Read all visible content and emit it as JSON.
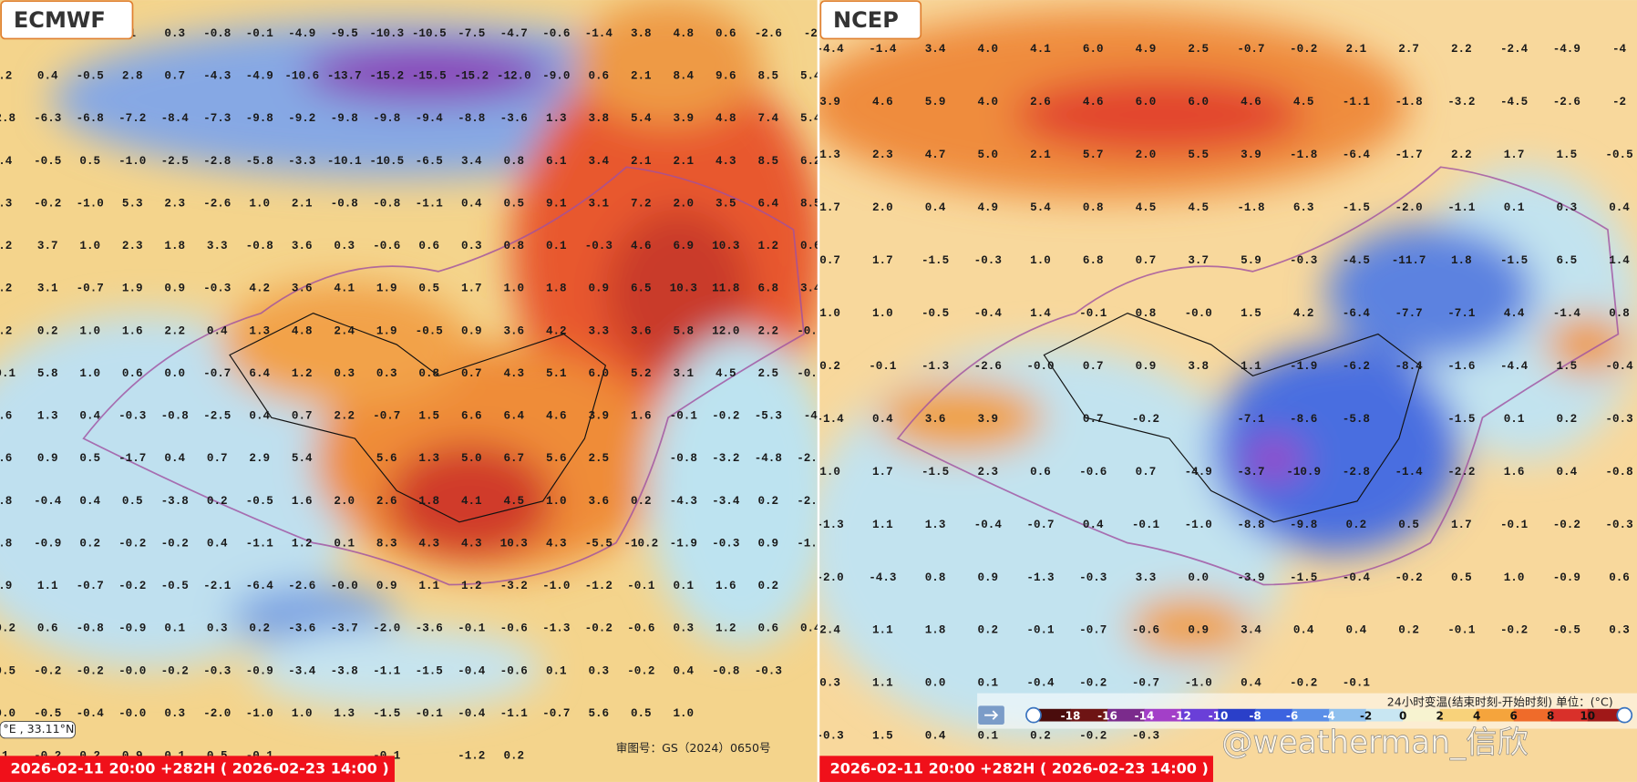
{
  "panels": [
    {
      "title": "ECMWF",
      "footer": "2026-02-11 20:00 +282H ( 2026-02-23 14:00 )",
      "map_number": "审图号：GS（2024）0650号",
      "coordinate": "°E , 33.11°N",
      "grid": [
        [
          null,
          null,
          null,
          "1",
          "0.3",
          "-0.8",
          "-0.1",
          "-4.9",
          "-9.5",
          "-10.3",
          "-10.5",
          "-7.5",
          "-4.7",
          "-0.6",
          "-1.4",
          "3.8",
          "4.8",
          "0.6",
          "-2.6",
          "-2"
        ],
        [
          ".2",
          "0.4",
          "-0.5",
          "2.8",
          "0.7",
          "-4.3",
          "-4.9",
          "-10.6",
          "-13.7",
          "-15.2",
          "-15.5",
          "-15.2",
          "-12.0",
          "-9.0",
          "0.6",
          "2.1",
          "8.4",
          "9.6",
          "8.5",
          "5.4"
        ],
        [
          "2.8",
          "-6.3",
          "-6.8",
          "-7.2",
          "-8.4",
          "-7.3",
          "-9.8",
          "-9.2",
          "-9.8",
          "-9.8",
          "-9.4",
          "-8.8",
          "-3.6",
          "1.3",
          "3.8",
          "5.4",
          "3.9",
          "4.8",
          "7.4",
          "5.4"
        ],
        [
          ".4",
          "-0.5",
          "0.5",
          "-1.0",
          "-2.5",
          "-2.8",
          "-5.8",
          "-3.3",
          "-10.1",
          "-10.5",
          "-6.5",
          "3.4",
          "0.8",
          "6.1",
          "3.4",
          "2.1",
          "2.1",
          "4.3",
          "8.5",
          "6.2"
        ],
        [
          ".3",
          "-0.2",
          "-1.0",
          "5.3",
          "2.3",
          "-2.6",
          "1.0",
          "2.1",
          "-0.8",
          "-0.8",
          "-1.1",
          "0.4",
          "0.5",
          "9.1",
          "3.1",
          "7.2",
          "2.0",
          "3.5",
          "6.4",
          "8.5"
        ],
        [
          ".2",
          "3.7",
          "1.0",
          "2.3",
          "1.8",
          "3.3",
          "-0.8",
          "3.6",
          "0.3",
          "-0.6",
          "0.6",
          "0.3",
          "0.8",
          "0.1",
          "-0.3",
          "4.6",
          "6.9",
          "10.3",
          "1.2",
          "0.6"
        ],
        [
          ".2",
          "3.1",
          "-0.7",
          "1.9",
          "0.9",
          "-0.3",
          "4.2",
          "3.6",
          "4.1",
          "1.9",
          "0.5",
          "1.7",
          "1.0",
          "1.8",
          "0.9",
          "6.5",
          "10.3",
          "11.8",
          "6.8",
          "3.4"
        ],
        [
          ".2",
          "0.2",
          "1.0",
          "1.6",
          "2.2",
          "0.4",
          "1.3",
          "4.8",
          "2.4",
          "1.9",
          "-0.5",
          "0.9",
          "3.6",
          "4.2",
          "3.3",
          "3.6",
          "5.8",
          "12.0",
          "2.2",
          "-0.7"
        ],
        [
          "0.1",
          "5.8",
          "1.0",
          "0.6",
          "0.0",
          "-0.7",
          "6.4",
          "1.2",
          "0.3",
          "0.3",
          "0.8",
          "0.7",
          "4.3",
          "5.1",
          "6.0",
          "5.2",
          "3.1",
          "4.5",
          "2.5",
          "-0.9"
        ],
        [
          ".6",
          "1.3",
          "0.4",
          "-0.3",
          "-0.8",
          "-2.5",
          "0.4",
          "0.7",
          "2.2",
          "-0.7",
          "1.5",
          "6.6",
          "6.4",
          "4.6",
          "3.9",
          "1.6",
          "-0.1",
          "-0.2",
          "-5.3",
          "-4"
        ],
        [
          ".6",
          "0.9",
          "0.5",
          "-1.7",
          "0.4",
          "0.7",
          "2.9",
          "5.4",
          null,
          "5.6",
          "1.3",
          "5.0",
          "6.7",
          "5.6",
          "2.5",
          null,
          "-0.8",
          "-3.2",
          "-4.8",
          "-2.1"
        ],
        [
          ".8",
          "-0.4",
          "0.4",
          "0.5",
          "-3.8",
          "0.2",
          "-0.5",
          "1.6",
          "2.0",
          "2.6",
          "1.8",
          "4.1",
          "4.5",
          "1.0",
          "3.6",
          "0.2",
          "-4.3",
          "-3.4",
          "0.2",
          "-2.6"
        ],
        [
          ".8",
          "-0.9",
          "0.2",
          "-0.2",
          "-0.2",
          "0.4",
          "-1.1",
          "1.2",
          "0.1",
          "8.3",
          "4.3",
          "4.3",
          "10.3",
          "4.3",
          "-5.5",
          "-10.2",
          "-1.9",
          "-0.3",
          "0.9",
          "-1.3"
        ],
        [
          ".9",
          "1.1",
          "-0.7",
          "-0.2",
          "-0.5",
          "-2.1",
          "-6.4",
          "-2.6",
          "-0.0",
          "0.9",
          "1.1",
          "1.2",
          "-3.2",
          "-1.0",
          "-1.2",
          "-0.1",
          "0.1",
          "1.6",
          "0.2",
          null
        ],
        [
          "0.2",
          "0.6",
          "-0.8",
          "-0.9",
          "0.1",
          "0.3",
          "0.2",
          "-3.6",
          "-3.7",
          "-2.0",
          "-3.6",
          "-0.1",
          "-0.6",
          "-1.3",
          "-0.2",
          "-0.6",
          "0.3",
          "1.2",
          "0.6",
          "0.4"
        ],
        [
          "0.5",
          "-0.2",
          "-0.2",
          "-0.0",
          "-0.2",
          "-0.3",
          "-0.9",
          "-3.4",
          "-3.8",
          "-1.1",
          "-1.5",
          "-0.4",
          "-0.6",
          "0.1",
          "0.3",
          "-0.2",
          "0.4",
          "-0.8",
          "-0.3",
          null
        ],
        [
          "0.0",
          "-0.5",
          "-0.4",
          "-0.0",
          "0.3",
          "-2.0",
          "-1.0",
          "1.0",
          "1.3",
          "-1.5",
          "-0.1",
          "-0.4",
          "-1.1",
          "-0.7",
          "5.6",
          "0.5",
          "1.0",
          null,
          null,
          null
        ],
        [
          "1",
          "-0.2",
          "0.2",
          "0.9",
          "0.1",
          "0.5",
          "-0.1",
          null,
          null,
          "-0.1",
          null,
          "-1.2",
          "0.2",
          null,
          null,
          null,
          null,
          null,
          null,
          null
        ]
      ]
    },
    {
      "title": "NCEP",
      "footer": "2026-02-11 20:00 +282H ( 2026-02-23 14:00 )",
      "grid": [
        [
          "-4.4",
          "-1.4",
          "3.4",
          "4.0",
          "4.1",
          "6.0",
          "4.9",
          "2.5",
          "-0.7",
          "-0.2",
          "2.1",
          "2.7",
          "2.2",
          "-2.4",
          "-4.9",
          "-4"
        ],
        [
          "3.9",
          "4.6",
          "5.9",
          "4.0",
          "2.6",
          "4.6",
          "6.0",
          "6.0",
          "4.6",
          "4.5",
          "-1.1",
          "-1.8",
          "-3.2",
          "-4.5",
          "-2.6",
          "-2"
        ],
        [
          "1.3",
          "2.3",
          "4.7",
          "5.0",
          "2.1",
          "5.7",
          "2.0",
          "5.5",
          "3.9",
          "-1.8",
          "-6.4",
          "-1.7",
          "2.2",
          "1.7",
          "1.5",
          "-0.5"
        ],
        [
          "1.7",
          "2.0",
          "0.4",
          "4.9",
          "5.4",
          "0.8",
          "4.5",
          "4.5",
          "-1.8",
          "6.3",
          "-1.5",
          "-2.0",
          "-1.1",
          "0.1",
          "0.3",
          "0.4"
        ],
        [
          "0.7",
          "1.7",
          "-1.5",
          "-0.3",
          "1.0",
          "6.8",
          "0.7",
          "3.7",
          "5.9",
          "-0.3",
          "-4.5",
          "-11.7",
          "1.8",
          "-1.5",
          "6.5",
          "1.4"
        ],
        [
          "1.0",
          "1.0",
          "-0.5",
          "-0.4",
          "1.4",
          "-0.1",
          "0.8",
          "-0.0",
          "1.5",
          "4.2",
          "-6.4",
          "-7.7",
          "-7.1",
          "4.4",
          "-1.4",
          "0.8"
        ],
        [
          "0.2",
          "-0.1",
          "-1.3",
          "-2.6",
          "-0.0",
          "0.7",
          "0.9",
          "3.8",
          "1.1",
          "-1.9",
          "-6.2",
          "-8.4",
          "-1.6",
          "-4.4",
          "1.5",
          "-0.4"
        ],
        [
          "-1.4",
          "0.4",
          "3.6",
          "3.9",
          null,
          "0.7",
          "-0.2",
          null,
          "-7.1",
          "-8.6",
          "-5.8",
          null,
          "-1.5",
          "0.1",
          "0.2",
          "-0.3"
        ],
        [
          "1.0",
          "1.7",
          "-1.5",
          "2.3",
          "0.6",
          "-0.6",
          "0.7",
          "-4.9",
          "-3.7",
          "-10.9",
          "-2.8",
          "-1.4",
          "-2.2",
          "1.6",
          "0.4",
          "-0.8"
        ],
        [
          "-1.3",
          "1.1",
          "1.3",
          "-0.4",
          "-0.7",
          "0.4",
          "-0.1",
          "-1.0",
          "-8.8",
          "-9.8",
          "0.2",
          "0.5",
          "1.7",
          "-0.1",
          "-0.2",
          "-0.3"
        ],
        [
          "-2.0",
          "-4.3",
          "0.8",
          "0.9",
          "-1.3",
          "-0.3",
          "3.3",
          "0.0",
          "-3.9",
          "-1.5",
          "-0.4",
          "-0.2",
          "0.5",
          "1.0",
          "-0.9",
          "0.6"
        ],
        [
          "2.4",
          "1.1",
          "1.8",
          "0.2",
          "-0.1",
          "-0.7",
          "-0.6",
          "0.9",
          "3.4",
          "0.4",
          "0.4",
          "0.2",
          "-0.1",
          "-0.2",
          "-0.5",
          "0.3"
        ],
        [
          "0.3",
          "1.1",
          "0.0",
          "0.1",
          "-0.4",
          "-0.2",
          "-0.7",
          "-1.0",
          "0.4",
          "-0.2",
          "-0.1",
          null,
          null,
          null,
          null,
          null
        ],
        [
          "-0.3",
          "1.5",
          "0.4",
          "0.1",
          "0.2",
          "-0.2",
          "-0.3",
          null,
          null,
          null,
          null,
          null,
          null,
          null,
          null,
          null
        ]
      ]
    }
  ],
  "legend": {
    "title": "24小时变温(结束时刻-开始时刻) 单位：(°C)",
    "ticks": [
      -18,
      -16,
      -14,
      -12,
      -10,
      -8,
      -6,
      -4,
      -2,
      0,
      2,
      4,
      6,
      8,
      10
    ]
  },
  "watermark": "@weatherman_信欣"
}
